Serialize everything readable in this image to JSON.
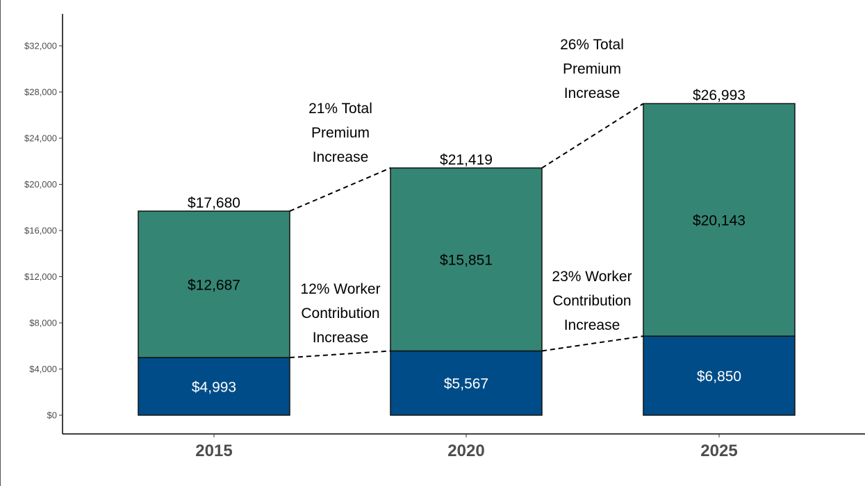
{
  "chart_data": {
    "type": "bar",
    "stacked": true,
    "categories": [
      "2015",
      "2020",
      "2025"
    ],
    "series": [
      {
        "values": [
          4993,
          5567,
          6850
        ],
        "color": "#004c88",
        "label_color": "#ffffff"
      },
      {
        "values": [
          12687,
          15851,
          20143
        ],
        "color": "#348574",
        "label_color": "#000000"
      }
    ],
    "segment_labels": [
      [
        "$4,993",
        "$5,567",
        "$6,850"
      ],
      [
        "$12,687",
        "$15,851",
        "$20,143"
      ]
    ],
    "totals": [
      17680,
      21419,
      26993
    ],
    "total_labels": [
      "$17,680",
      "$21,419",
      "$26,993"
    ],
    "y_ticks": [
      0,
      4000,
      8000,
      12000,
      16000,
      20000,
      24000,
      28000,
      32000
    ],
    "y_tick_labels": [
      "$0",
      "$4,000",
      "$8,000",
      "$12,000",
      "$16,000",
      "$20,000",
      "$24,000",
      "$28,000",
      "$32,000"
    ],
    "ylim": [
      0,
      34400
    ],
    "title": "",
    "xlabel": "",
    "ylabel": "",
    "grid": false,
    "legend": "none",
    "annotations": {
      "premium": [
        {
          "between": [
            0,
            1
          ],
          "lines": [
            "21% Total",
            "Premium",
            "Increase"
          ]
        },
        {
          "between": [
            1,
            2
          ],
          "lines": [
            "26% Total",
            "Premium",
            "Increase"
          ]
        }
      ],
      "worker": [
        {
          "between": [
            0,
            1
          ],
          "lines": [
            "12% Worker",
            "Contribution",
            "Increase"
          ]
        },
        {
          "between": [
            1,
            2
          ],
          "lines": [
            "23% Worker",
            "Contribution",
            "Increase"
          ]
        }
      ]
    }
  }
}
